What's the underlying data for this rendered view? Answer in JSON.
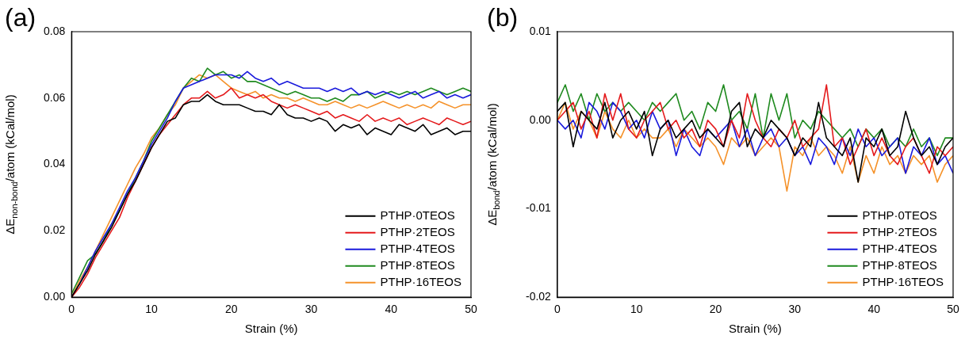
{
  "chart_data": [
    {
      "type": "line",
      "title": "(a)",
      "xlabel": "Strain (%)",
      "ylabel": "ΔE$_{non-bond}$/atom (kCal/mol)",
      "x": [
        0,
        1,
        2,
        3,
        4,
        5,
        6,
        7,
        8,
        9,
        10,
        11,
        12,
        13,
        14,
        15,
        16,
        17,
        18,
        19,
        20,
        21,
        22,
        23,
        24,
        25,
        26,
        27,
        28,
        29,
        30,
        31,
        32,
        33,
        34,
        35,
        36,
        37,
        38,
        39,
        40,
        41,
        42,
        43,
        44,
        45,
        46,
        47,
        48,
        49,
        50
      ],
      "xlim": [
        0,
        50
      ],
      "xticks": [
        0,
        10,
        20,
        30,
        40,
        50
      ],
      "ylim": [
        0,
        0.08
      ],
      "yticks": [
        {
          "value": 0,
          "label": "0.00"
        },
        {
          "value": 0.02,
          "label": "0.02"
        },
        {
          "value": 0.04,
          "label": "0.04"
        },
        {
          "value": 0.06,
          "label": "0.06"
        },
        {
          "value": 0.08,
          "label": "0.08"
        }
      ],
      "legend": "bottom right",
      "series": [
        {
          "name": "PTHP·0TEOS",
          "color": "#000000",
          "values": [
            0,
            0.004,
            0.008,
            0.013,
            0.017,
            0.021,
            0.026,
            0.031,
            0.035,
            0.04,
            0.045,
            0.049,
            0.053,
            0.054,
            0.058,
            0.059,
            0.059,
            0.061,
            0.059,
            0.058,
            0.058,
            0.058,
            0.057,
            0.056,
            0.056,
            0.055,
            0.058,
            0.055,
            0.054,
            0.054,
            0.053,
            0.054,
            0.053,
            0.05,
            0.052,
            0.051,
            0.052,
            0.049,
            0.051,
            0.05,
            0.049,
            0.052,
            0.051,
            0.05,
            0.052,
            0.049,
            0.05,
            0.051,
            0.049,
            0.05,
            0.05
          ]
        },
        {
          "name": "PTHP·2TEOS",
          "color": "#e41a1c",
          "values": [
            0,
            0.003,
            0.007,
            0.012,
            0.016,
            0.02,
            0.024,
            0.03,
            0.035,
            0.04,
            0.045,
            0.049,
            0.052,
            0.055,
            0.058,
            0.06,
            0.06,
            0.062,
            0.06,
            0.061,
            0.063,
            0.06,
            0.061,
            0.06,
            0.061,
            0.059,
            0.058,
            0.057,
            0.058,
            0.057,
            0.056,
            0.055,
            0.056,
            0.054,
            0.055,
            0.054,
            0.053,
            0.055,
            0.053,
            0.054,
            0.053,
            0.054,
            0.052,
            0.053,
            0.054,
            0.053,
            0.052,
            0.054,
            0.053,
            0.052,
            0.053
          ]
        },
        {
          "name": "PTHP·4TEOS",
          "color": "#1a1adc",
          "values": [
            0,
            0.004,
            0.009,
            0.014,
            0.018,
            0.022,
            0.027,
            0.032,
            0.036,
            0.041,
            0.046,
            0.05,
            0.054,
            0.059,
            0.063,
            0.064,
            0.065,
            0.066,
            0.067,
            0.067,
            0.067,
            0.066,
            0.068,
            0.066,
            0.065,
            0.066,
            0.064,
            0.065,
            0.064,
            0.063,
            0.063,
            0.063,
            0.062,
            0.063,
            0.062,
            0.063,
            0.061,
            0.062,
            0.061,
            0.062,
            0.061,
            0.06,
            0.061,
            0.062,
            0.06,
            0.061,
            0.062,
            0.06,
            0.061,
            0.06,
            0.061
          ]
        },
        {
          "name": "PTHP·8TEOS",
          "color": "#1f8a1f",
          "values": [
            0.001,
            0.006,
            0.011,
            0.013,
            0.017,
            0.022,
            0.026,
            0.031,
            0.036,
            0.041,
            0.047,
            0.051,
            0.055,
            0.059,
            0.063,
            0.066,
            0.065,
            0.069,
            0.067,
            0.068,
            0.066,
            0.067,
            0.065,
            0.065,
            0.064,
            0.063,
            0.062,
            0.061,
            0.062,
            0.061,
            0.06,
            0.06,
            0.059,
            0.06,
            0.059,
            0.061,
            0.061,
            0.062,
            0.06,
            0.061,
            0.062,
            0.061,
            0.062,
            0.061,
            0.062,
            0.063,
            0.062,
            0.061,
            0.062,
            0.063,
            0.062
          ]
        },
        {
          "name": "PTHP·16TEOS",
          "color": "#f5922a",
          "values": [
            0,
            0.005,
            0.009,
            0.014,
            0.019,
            0.024,
            0.029,
            0.034,
            0.039,
            0.043,
            0.048,
            0.051,
            0.055,
            0.058,
            0.063,
            0.065,
            0.067,
            0.066,
            0.067,
            0.065,
            0.063,
            0.062,
            0.061,
            0.062,
            0.06,
            0.061,
            0.06,
            0.06,
            0.059,
            0.06,
            0.059,
            0.058,
            0.058,
            0.059,
            0.058,
            0.057,
            0.058,
            0.057,
            0.058,
            0.059,
            0.058,
            0.057,
            0.058,
            0.057,
            0.058,
            0.057,
            0.059,
            0.058,
            0.057,
            0.058,
            0.058
          ]
        }
      ]
    },
    {
      "type": "line",
      "title": "(b)",
      "xlabel": "Strain (%)",
      "ylabel": "ΔE$_{bond}$/atom (kCal/mol)",
      "x": [
        0,
        1,
        2,
        3,
        4,
        5,
        6,
        7,
        8,
        9,
        10,
        11,
        12,
        13,
        14,
        15,
        16,
        17,
        18,
        19,
        20,
        21,
        22,
        23,
        24,
        25,
        26,
        27,
        28,
        29,
        30,
        31,
        32,
        33,
        34,
        35,
        36,
        37,
        38,
        39,
        40,
        41,
        42,
        43,
        44,
        45,
        46,
        47,
        48,
        49,
        50
      ],
      "xlim": [
        0,
        50
      ],
      "xticks": [
        0,
        10,
        20,
        30,
        40,
        50
      ],
      "ylim": [
        -0.02,
        0.01
      ],
      "yticks": [
        {
          "value": -0.02,
          "label": "-0.02"
        },
        {
          "value": -0.01,
          "label": "-0.01"
        },
        {
          "value": 0,
          "label": "0.00"
        },
        {
          "value": 0.01,
          "label": "0.01"
        }
      ],
      "legend": "bottom right",
      "series": [
        {
          "name": "PTHP·0TEOS",
          "color": "#000000",
          "values": [
            0.001,
            0.002,
            -0.003,
            0.001,
            0.0,
            -0.001,
            0.002,
            -0.002,
            0.0,
            0.001,
            -0.001,
            0.001,
            -0.004,
            -0.001,
            0.0,
            -0.002,
            -0.001,
            0.0,
            -0.002,
            -0.001,
            -0.002,
            -0.003,
            0.001,
            0.002,
            -0.003,
            -0.001,
            -0.002,
            0.0,
            -0.001,
            -0.002,
            -0.004,
            -0.002,
            -0.003,
            0.002,
            -0.002,
            -0.003,
            -0.004,
            -0.002,
            -0.007,
            -0.002,
            -0.003,
            -0.001,
            -0.004,
            -0.003,
            0.001,
            -0.002,
            -0.004,
            -0.003,
            -0.005,
            -0.003,
            -0.002
          ]
        },
        {
          "name": "PTHP·2TEOS",
          "color": "#e41a1c",
          "values": [
            0.0,
            0.001,
            0.002,
            -0.001,
            0.001,
            -0.002,
            0.003,
            0.0,
            0.003,
            -0.001,
            -0.002,
            0.0,
            0.001,
            0.002,
            -0.001,
            0.0,
            -0.002,
            -0.001,
            -0.003,
            0.0,
            -0.001,
            -0.003,
            0.0,
            -0.002,
            0.003,
            0.0,
            -0.002,
            -0.003,
            -0.001,
            -0.002,
            0.0,
            -0.003,
            -0.002,
            -0.001,
            0.004,
            -0.003,
            -0.002,
            -0.005,
            -0.003,
            -0.001,
            -0.004,
            -0.002,
            -0.004,
            -0.005,
            -0.003,
            -0.002,
            -0.004,
            -0.006,
            -0.003,
            -0.004,
            -0.003
          ]
        },
        {
          "name": "PTHP·4TEOS",
          "color": "#1a1adc",
          "values": [
            0.0,
            -0.001,
            0.0,
            -0.002,
            0.002,
            0.001,
            -0.001,
            0.002,
            0.001,
            -0.001,
            0.0,
            -0.002,
            0.001,
            -0.001,
            0.0,
            -0.004,
            -0.001,
            -0.003,
            -0.004,
            -0.001,
            -0.002,
            -0.001,
            0.0,
            -0.003,
            -0.001,
            -0.004,
            -0.002,
            -0.001,
            -0.003,
            -0.002,
            -0.004,
            -0.003,
            -0.005,
            -0.002,
            -0.003,
            -0.005,
            -0.002,
            -0.004,
            -0.001,
            -0.003,
            -0.002,
            -0.004,
            -0.003,
            -0.002,
            -0.006,
            -0.003,
            -0.004,
            -0.002,
            -0.005,
            -0.004,
            -0.006
          ]
        },
        {
          "name": "PTHP·8TEOS",
          "color": "#1f8a1f",
          "values": [
            0.002,
            0.004,
            0.001,
            0.003,
            0.0,
            0.003,
            0.001,
            0.002,
            0.001,
            0.002,
            0.001,
            0.0,
            0.002,
            0.001,
            0.002,
            0.003,
            0.0,
            0.001,
            -0.001,
            0.002,
            0.001,
            0.004,
            0.0,
            0.001,
            -0.001,
            0.003,
            -0.002,
            0.003,
            0.0,
            0.003,
            -0.002,
            0.0,
            -0.001,
            0.001,
            0.0,
            -0.001,
            -0.002,
            -0.001,
            -0.003,
            -0.001,
            -0.002,
            -0.001,
            -0.003,
            -0.002,
            -0.003,
            -0.001,
            -0.003,
            -0.002,
            -0.004,
            -0.002,
            -0.002
          ]
        },
        {
          "name": "PTHP·16TEOS",
          "color": "#f5922a",
          "values": [
            0.0,
            0.002,
            -0.001,
            0.001,
            0.0,
            -0.002,
            0.001,
            -0.001,
            -0.002,
            0.0,
            -0.002,
            -0.001,
            -0.002,
            -0.002,
            -0.001,
            -0.003,
            -0.001,
            -0.002,
            -0.003,
            -0.002,
            -0.003,
            -0.005,
            -0.002,
            -0.003,
            -0.002,
            -0.004,
            -0.003,
            -0.002,
            -0.003,
            -0.008,
            -0.003,
            -0.004,
            -0.002,
            -0.004,
            -0.003,
            -0.004,
            -0.006,
            -0.003,
            -0.007,
            -0.004,
            -0.006,
            -0.003,
            -0.005,
            -0.004,
            -0.006,
            -0.004,
            -0.005,
            -0.004,
            -0.007,
            -0.005,
            -0.004
          ]
        }
      ]
    }
  ]
}
